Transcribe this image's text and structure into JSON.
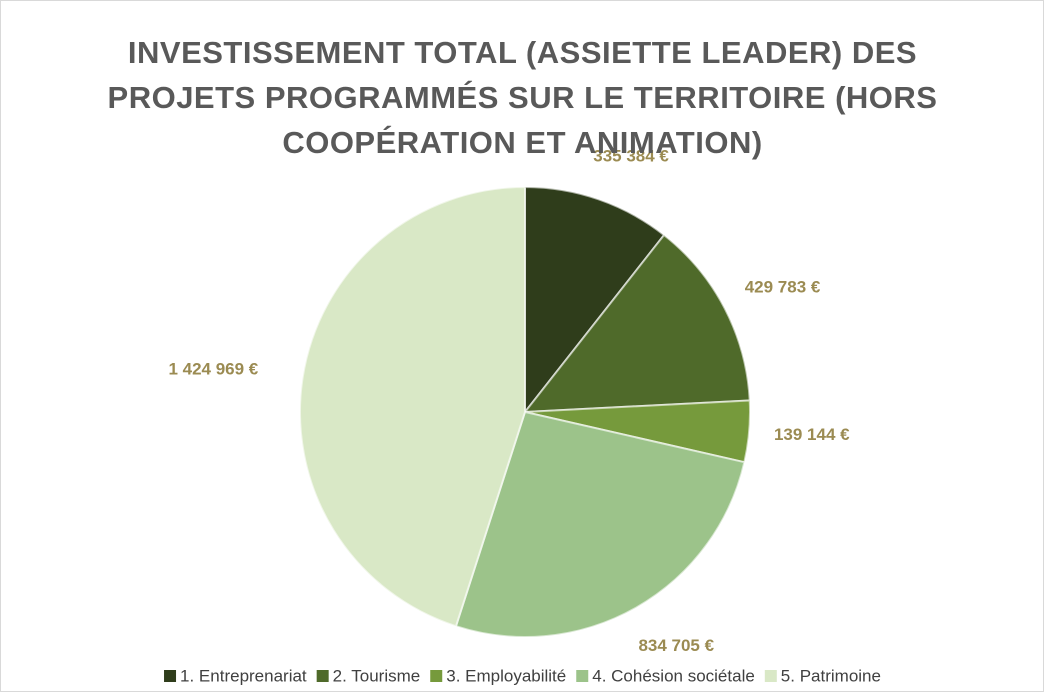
{
  "chart_data": {
    "type": "pie",
    "title": "INVESTISSEMENT TOTAL (ASSIETTE LEADER) DES PROJETS PROGRAMMÉS SUR LE TERRITOIRE (HORS COOPÉRATION ET ANIMATION)",
    "categories": [
      "1. Entreprenariat",
      "2. Tourisme",
      "3. Employabilité",
      "4. Cohésion sociétale",
      "5. Patrimoine"
    ],
    "values": [
      335384,
      429783,
      139144,
      834705,
      1424969
    ],
    "value_labels": [
      "335 384 €",
      "429 783 €",
      "139 144 €",
      "834 705 €",
      "1 424 969 €"
    ],
    "colors": [
      "#2f3d1b",
      "#4f6a2a",
      "#769a3c",
      "#9cc38a",
      "#d9e8c6"
    ],
    "legend": "bottom"
  }
}
